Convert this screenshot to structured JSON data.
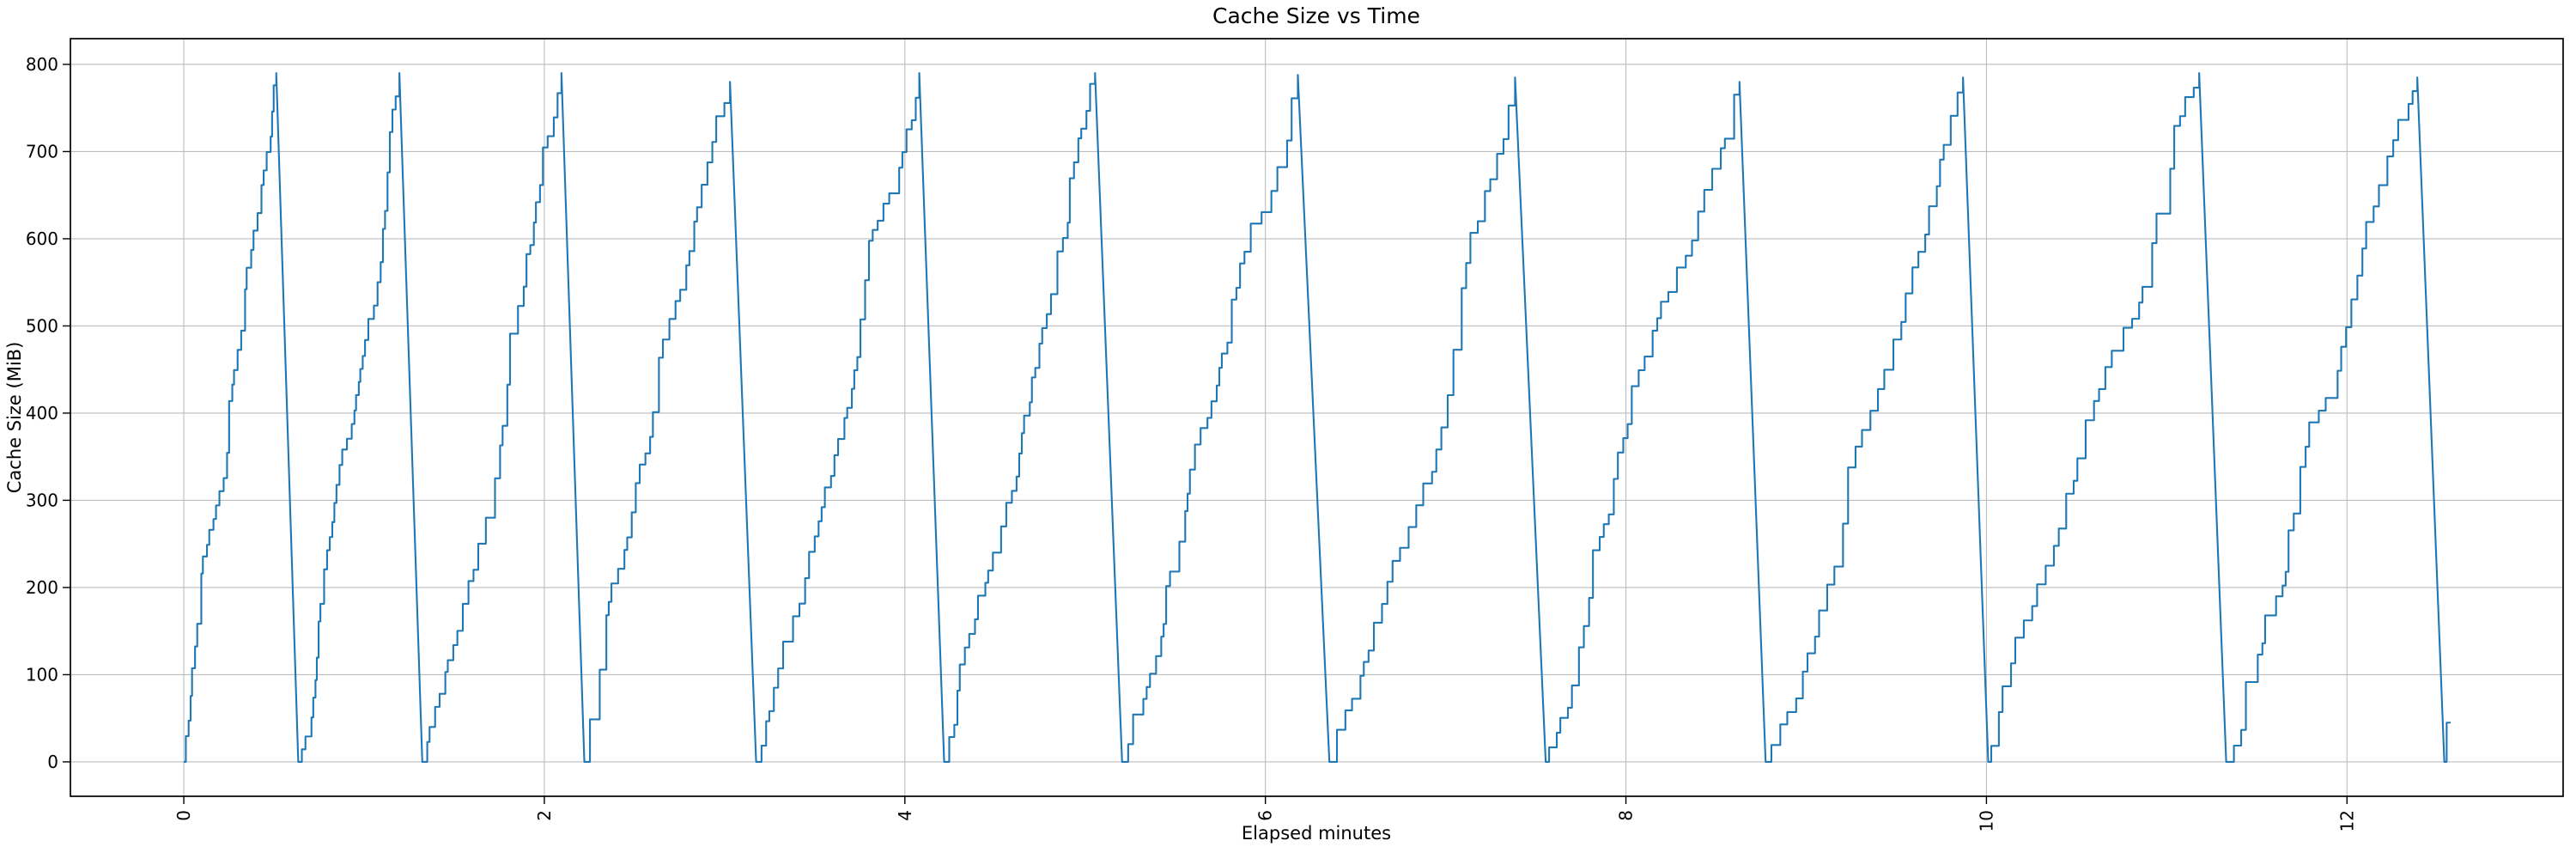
{
  "chart_data": {
    "type": "line",
    "title": "Cache Size vs Time",
    "xlabel": "Elapsed minutes",
    "ylabel": "Cache Size (MiB)",
    "xlim": [
      -0.629,
      13.199
    ],
    "ylim": [
      -39.5,
      829.5
    ],
    "xticks": [
      0,
      2,
      4,
      6,
      8,
      10,
      12
    ],
    "yticks": [
      0,
      100,
      200,
      300,
      400,
      500,
      600,
      700,
      800
    ],
    "x_tick_rotation_deg": 90,
    "grid": true,
    "legend": "none",
    "pattern": "sawtooth: stepped staircase ramp from 0 up to peak, then sharp near-vertical reset to 0; periods lengthen over time",
    "line_color": "#1f77b4",
    "grid_color": "#bdbdbd",
    "spine_color": "#000000",
    "teeth": [
      {
        "start": 0.0,
        "peak_time": 0.513,
        "peak_value": 790,
        "reset_end": 0.635
      },
      {
        "start": 0.635,
        "peak_time": 1.196,
        "peak_value": 790,
        "reset_end": 1.323
      },
      {
        "start": 1.323,
        "peak_time": 2.095,
        "peak_value": 790,
        "reset_end": 2.222
      },
      {
        "start": 2.222,
        "peak_time": 3.03,
        "peak_value": 780,
        "reset_end": 3.175
      },
      {
        "start": 3.175,
        "peak_time": 4.08,
        "peak_value": 790,
        "reset_end": 4.218
      },
      {
        "start": 4.218,
        "peak_time": 5.055,
        "peak_value": 790,
        "reset_end": 5.205
      },
      {
        "start": 5.205,
        "peak_time": 6.18,
        "peak_value": 788,
        "reset_end": 6.355
      },
      {
        "start": 6.355,
        "peak_time": 7.385,
        "peak_value": 785,
        "reset_end": 7.555
      },
      {
        "start": 7.555,
        "peak_time": 8.63,
        "peak_value": 780,
        "reset_end": 8.775
      },
      {
        "start": 8.775,
        "peak_time": 9.87,
        "peak_value": 785,
        "reset_end": 10.01
      },
      {
        "start": 10.01,
        "peak_time": 11.18,
        "peak_value": 790,
        "reset_end": 11.33
      },
      {
        "start": 11.33,
        "peak_time": 12.39,
        "peak_value": 785,
        "reset_end": 12.54
      }
    ],
    "final_segment": {
      "flat_until": 12.553,
      "value": 45,
      "end": 12.575
    }
  }
}
